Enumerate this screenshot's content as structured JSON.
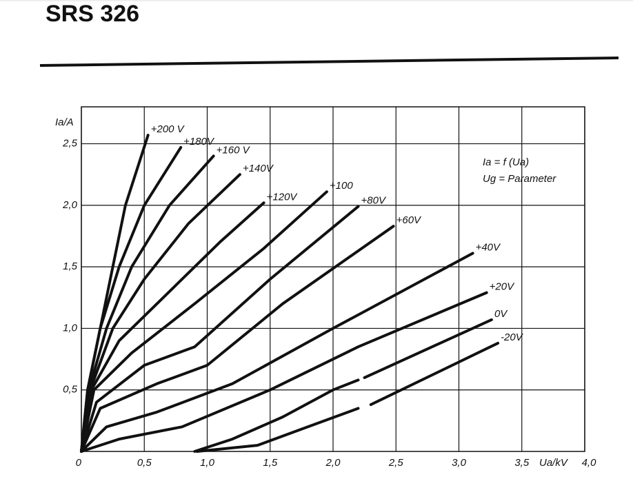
{
  "chart_data": {
    "type": "line",
    "title": "SRS 326",
    "x_label": "Ua/kV",
    "y_label": "Ia/A",
    "annotations": [
      "Ia = f (Ua)",
      "Ug = Parameter"
    ],
    "xlim": [
      0,
      4.0
    ],
    "ylim": [
      0,
      2.8
    ],
    "xticks": [
      0,
      {
        "value": 0.5,
        "label": "0,5"
      },
      {
        "value": 1.0,
        "label": "1,0"
      },
      {
        "value": 1.5,
        "label": "1,5"
      },
      {
        "value": 2.0,
        "label": "2,0"
      },
      {
        "value": 2.5,
        "label": "2,5"
      },
      {
        "value": 3.0,
        "label": "3,0"
      },
      {
        "value": 3.5,
        "label": "3,5"
      },
      {
        "value": 4.0,
        "label": "4,0"
      }
    ],
    "yticks": [
      {
        "value": 0.5,
        "label": "0,5"
      },
      {
        "value": 1.0,
        "label": "1,0"
      },
      {
        "value": 1.5,
        "label": "1,5"
      },
      {
        "value": 2.0,
        "label": "2,0"
      },
      {
        "value": 2.5,
        "label": "2,5"
      }
    ],
    "grid": true,
    "color": "#111111",
    "series": [
      {
        "name": "+200 V",
        "x": [
          0,
          0.05,
          0.15,
          0.25,
          0.35,
          0.53
        ],
        "values": [
          0,
          0.5,
          1.0,
          1.5,
          2.0,
          2.57
        ]
      },
      {
        "name": "+180V",
        "x": [
          0,
          0.05,
          0.15,
          0.3,
          0.5,
          0.79
        ],
        "values": [
          0,
          0.5,
          1.0,
          1.5,
          2.0,
          2.47
        ]
      },
      {
        "name": "+160 V",
        "x": [
          0,
          0.06,
          0.2,
          0.4,
          0.7,
          1.05
        ],
        "values": [
          0,
          0.5,
          1.0,
          1.5,
          2.0,
          2.4
        ]
      },
      {
        "name": "+140V",
        "x": [
          0,
          0.07,
          0.25,
          0.5,
          0.85,
          1.26
        ],
        "values": [
          0,
          0.5,
          1.0,
          1.4,
          1.85,
          2.25
        ]
      },
      {
        "name": "+120V",
        "x": [
          0,
          0.08,
          0.3,
          0.7,
          1.1,
          1.45
        ],
        "values": [
          0,
          0.5,
          0.9,
          1.3,
          1.7,
          2.02
        ]
      },
      {
        "name": "+100",
        "x": [
          0,
          0.1,
          0.4,
          0.9,
          1.45,
          1.95
        ],
        "values": [
          0,
          0.5,
          0.8,
          1.2,
          1.65,
          2.11
        ]
      },
      {
        "name": "+80V",
        "x": [
          0,
          0.12,
          0.5,
          0.9,
          1.5,
          2.2
        ],
        "values": [
          0,
          0.4,
          0.7,
          0.85,
          1.4,
          1.99
        ]
      },
      {
        "name": "+60V",
        "x": [
          0,
          0.15,
          0.6,
          1.0,
          1.6,
          2.48
        ],
        "values": [
          0,
          0.35,
          0.55,
          0.7,
          1.2,
          1.83
        ]
      },
      {
        "name": "+40V",
        "x": [
          0,
          0.2,
          0.6,
          1.2,
          2.0,
          3.11
        ],
        "values": [
          0,
          0.2,
          0.32,
          0.55,
          1.0,
          1.61
        ]
      },
      {
        "name": "+20V",
        "x": [
          0,
          0.3,
          0.8,
          1.5,
          2.2,
          3.22
        ],
        "values": [
          0,
          0.1,
          0.2,
          0.5,
          0.85,
          1.29
        ]
      },
      {
        "name": "0V",
        "x": [
          0.9,
          1.2,
          1.6,
          2.0,
          2.2,
          2.22,
          2.25,
          3.26
        ],
        "values": [
          0,
          0.1,
          0.28,
          0.5,
          0.58,
          null,
          0.6,
          1.07
        ]
      },
      {
        "name": "-20V",
        "x": [
          0.92,
          1.4,
          1.8,
          2.2,
          2.25,
          2.3,
          3.31
        ],
        "values": [
          0,
          0.05,
          0.2,
          0.35,
          null,
          0.38,
          0.88
        ]
      }
    ]
  }
}
